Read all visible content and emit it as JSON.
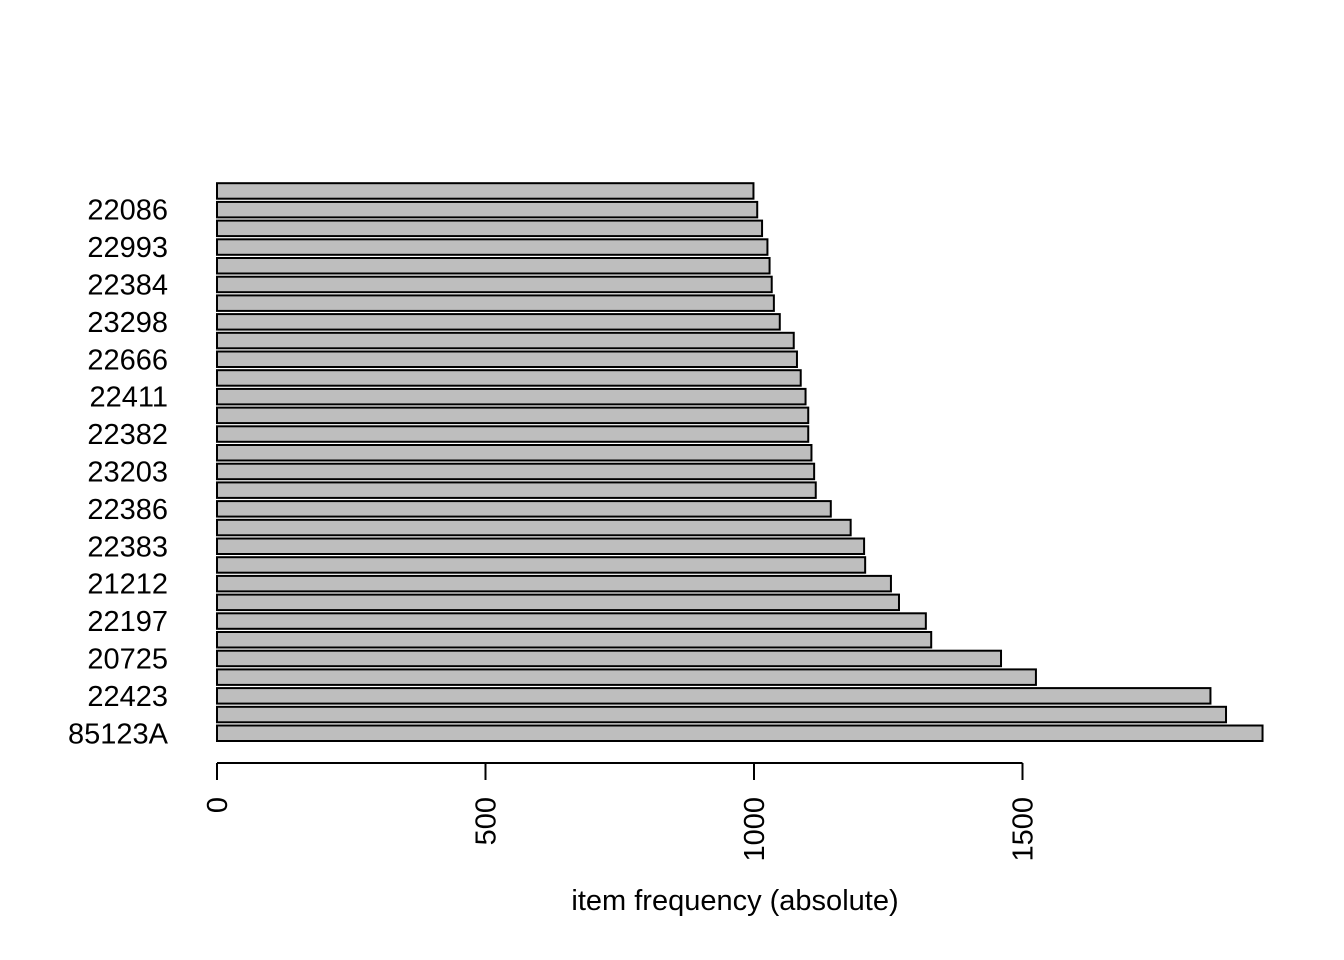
{
  "chart_data": {
    "type": "bar",
    "orientation": "horizontal",
    "title": "",
    "xlabel": "item frequency (absolute)",
    "ylabel": "",
    "xlim": [
      0,
      1950
    ],
    "x_ticks": [
      "0",
      "500",
      "1000",
      "1500"
    ],
    "x_tick_values": [
      0,
      500,
      1000,
      1500
    ],
    "categories": [
      "85123A",
      "",
      "22423",
      "",
      "20725",
      "",
      "22197",
      "",
      "21212",
      "",
      "22383",
      "",
      "22386",
      "",
      "23203",
      "",
      "22382",
      "",
      "22411",
      "",
      "22666",
      "",
      "23298",
      "",
      "22384",
      "",
      "22993",
      "",
      "22086",
      ""
    ],
    "values": [
      1947,
      1879,
      1850,
      1525,
      1460,
      1330,
      1320,
      1270,
      1255,
      1207,
      1205,
      1180,
      1143,
      1115,
      1112,
      1107,
      1101,
      1101,
      1096,
      1087,
      1080,
      1074,
      1048,
      1037,
      1033,
      1029,
      1025,
      1015,
      1006,
      999
    ],
    "grid": false,
    "legend": "none",
    "bar_fill": "#bebebe",
    "bar_stroke": "#000000"
  }
}
